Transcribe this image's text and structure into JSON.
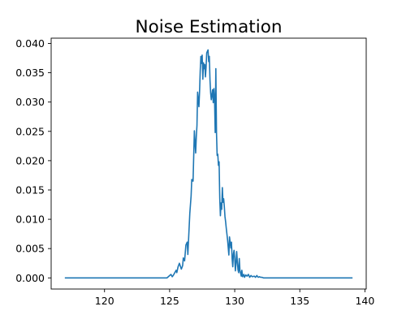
{
  "chart_data": {
    "type": "line",
    "title": "Noise Estimation",
    "xlabel": "",
    "ylabel": "",
    "xlim": [
      115.9,
      140.1
    ],
    "ylim": [
      -0.0019,
      0.0409
    ],
    "xticks": [
      120,
      125,
      130,
      135,
      140
    ],
    "xtick_labels": [
      "120",
      "125",
      "130",
      "135",
      "140"
    ],
    "yticks": [
      0,
      0.005,
      0.01,
      0.015,
      0.02,
      0.025,
      0.03,
      0.035,
      0.04
    ],
    "ytick_labels": [
      "0.000",
      "0.005",
      "0.010",
      "0.015",
      "0.020",
      "0.025",
      "0.030",
      "0.035",
      "0.040"
    ],
    "grid": false,
    "legend": false,
    "color": "#1f77b4",
    "series": [
      {
        "x": [
          117.0,
          124.8,
          124.95,
          125.1,
          125.2,
          125.3,
          125.4,
          125.5,
          125.55,
          125.65,
          125.75,
          125.9,
          126.0,
          126.05,
          126.15,
          126.25,
          126.35,
          126.4,
          126.55,
          126.65,
          126.7,
          126.8,
          126.9,
          127.0,
          127.05,
          127.1,
          127.15,
          127.25,
          127.3,
          127.35,
          127.4,
          127.45,
          127.5,
          127.55,
          127.6,
          127.65,
          127.7,
          127.75,
          127.8,
          127.85,
          127.95,
          128.0,
          128.05,
          128.1,
          128.15,
          128.2,
          128.3,
          128.35,
          128.4,
          128.45,
          128.5,
          128.55,
          128.6,
          128.65,
          128.7,
          128.75,
          128.8,
          128.85,
          128.9,
          128.95,
          129.0,
          129.05,
          129.1,
          129.15,
          129.2,
          129.25,
          129.3,
          129.35,
          129.45,
          129.55,
          129.6,
          129.7,
          129.75,
          129.8,
          129.85,
          129.9,
          129.95,
          130.0,
          130.05,
          130.1,
          130.15,
          130.2,
          130.25,
          130.3,
          130.35,
          130.4,
          130.5,
          130.55,
          130.6,
          130.7,
          130.75,
          130.85,
          130.95,
          131.05,
          131.15,
          131.25,
          131.35,
          131.5,
          131.6,
          131.7,
          131.8,
          131.9,
          132.0,
          132.1,
          132.2,
          139.0
        ],
        "y": [
          0.0,
          0.0,
          0.0003,
          0.0006,
          0.0002,
          0.0005,
          0.0009,
          0.0013,
          0.0009,
          0.0019,
          0.0025,
          0.0015,
          0.0021,
          0.0034,
          0.0029,
          0.0056,
          0.0061,
          0.004,
          0.011,
          0.014,
          0.0168,
          0.0165,
          0.0251,
          0.0213,
          0.0241,
          0.026,
          0.0317,
          0.0292,
          0.0318,
          0.0353,
          0.0378,
          0.0366,
          0.038,
          0.0339,
          0.0367,
          0.0357,
          0.0364,
          0.0343,
          0.0359,
          0.0384,
          0.0389,
          0.0369,
          0.0378,
          0.0338,
          0.0316,
          0.0304,
          0.0321,
          0.0299,
          0.0323,
          0.0307,
          0.0248,
          0.0357,
          0.0248,
          0.0209,
          0.0211,
          0.0192,
          0.0198,
          0.0136,
          0.0106,
          0.0128,
          0.0117,
          0.0154,
          0.0129,
          0.0135,
          0.0122,
          0.0105,
          0.0096,
          0.0085,
          0.0065,
          0.0039,
          0.007,
          0.0051,
          0.0061,
          0.0033,
          0.0019,
          0.0041,
          0.0047,
          0.0033,
          0.0012,
          0.0025,
          0.0045,
          0.0028,
          0.0014,
          0.0009,
          0.0033,
          0.0013,
          0.0003,
          0.0013,
          0.0002,
          0.0006,
          0.0001,
          0.0005,
          0.0003,
          0.0006,
          0.0001,
          0.0004,
          0.0002,
          0.0003,
          0.0001,
          0.0004,
          0.0001,
          0.0002,
          0.0001,
          0.0001,
          0.0,
          0.0
        ]
      }
    ]
  }
}
